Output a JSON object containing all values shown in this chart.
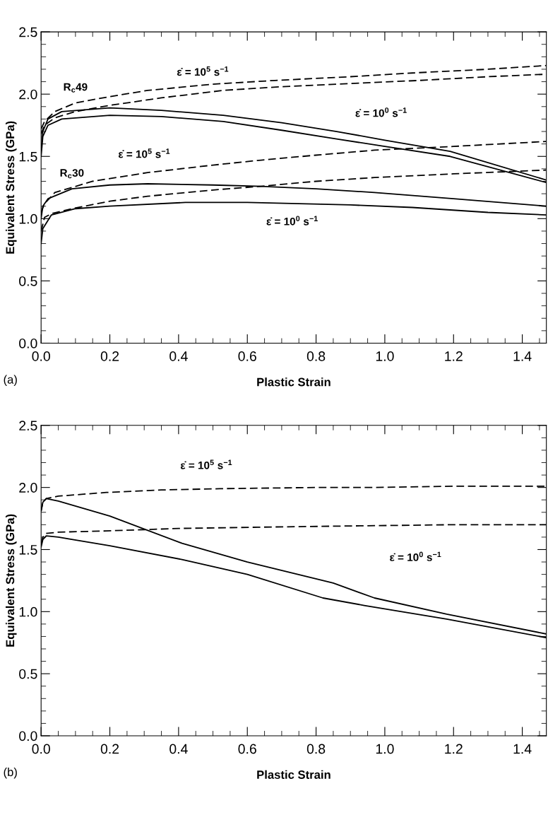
{
  "chart_data": [
    {
      "type": "line",
      "xlabel": "Plastic Strain",
      "ylabel": "Equivalent Stress (GPa)",
      "xlim": [
        0,
        1.47
      ],
      "xticks": [
        {
          "value": 0,
          "label": "0.0"
        },
        {
          "value": 0.2,
          "label": "0.2"
        },
        {
          "value": 0.4,
          "label": "0.4"
        },
        {
          "value": 0.6,
          "label": "0.6"
        },
        {
          "value": 0.8,
          "label": "0.8"
        },
        {
          "value": 1.0,
          "label": "1.0"
        },
        {
          "value": 1.2,
          "label": "1.2"
        },
        {
          "value": 1.4,
          "label": "1.4"
        }
      ],
      "ylim": [
        0,
        2.5
      ],
      "yticks": [
        {
          "value": 0,
          "label": "0.0"
        },
        {
          "value": 0.5,
          "label": "0.5"
        },
        {
          "value": 1.0,
          "label": "1.0"
        },
        {
          "value": 1.5,
          "label": "1.5"
        },
        {
          "value": 2.0,
          "label": "2.0"
        },
        {
          "value": 2.5,
          "label": "2.5"
        }
      ],
      "grid": false,
      "legend": false,
      "marker": "none",
      "series": [
        {
          "color": "#000000",
          "line_style": "dashed",
          "x": [
            0,
            0.01,
            0.04,
            0.1,
            0.2,
            0.31,
            0.5,
            0.68,
            0.9,
            1.08,
            1.3,
            1.47
          ],
          "values": [
            1.72,
            1.78,
            1.86,
            1.93,
            1.98,
            2.03,
            2.08,
            2.11,
            2.14,
            2.17,
            2.2,
            2.23
          ]
        },
        {
          "color": "#000000",
          "line_style": "dashed",
          "x": [
            0,
            0.01,
            0.04,
            0.1,
            0.2,
            0.35,
            0.53,
            0.7,
            0.86,
            1.1,
            1.3,
            1.47
          ],
          "values": [
            1.68,
            1.75,
            1.81,
            1.86,
            1.91,
            1.97,
            2.03,
            2.06,
            2.08,
            2.11,
            2.14,
            2.16
          ]
        },
        {
          "color": "#000000",
          "line_style": "solid",
          "x": [
            0,
            0.005,
            0.02,
            0.06,
            0.2,
            0.35,
            0.53,
            0.7,
            0.86,
            1.0,
            1.19,
            1.47
          ],
          "values": [
            1.55,
            1.7,
            1.8,
            1.86,
            1.89,
            1.87,
            1.83,
            1.77,
            1.7,
            1.63,
            1.54,
            1.31
          ]
        },
        {
          "color": "#000000",
          "line_style": "solid",
          "x": [
            0,
            0.005,
            0.02,
            0.06,
            0.2,
            0.35,
            0.53,
            0.7,
            0.86,
            1.0,
            1.19,
            1.47
          ],
          "values": [
            1.5,
            1.66,
            1.75,
            1.8,
            1.83,
            1.82,
            1.78,
            1.71,
            1.64,
            1.58,
            1.5,
            1.29
          ]
        },
        {
          "color": "#000000",
          "line_style": "dashed",
          "x": [
            0,
            0.01,
            0.04,
            0.15,
            0.31,
            0.5,
            0.64,
            0.8,
            0.97,
            1.2,
            1.47
          ],
          "values": [
            1.05,
            1.12,
            1.21,
            1.3,
            1.37,
            1.43,
            1.47,
            1.51,
            1.55,
            1.58,
            1.62
          ]
        },
        {
          "color": "#000000",
          "line_style": "dashed",
          "x": [
            0,
            0.01,
            0.03,
            0.09,
            0.2,
            0.31,
            0.5,
            0.64,
            0.8,
            0.97,
            1.2,
            1.47
          ],
          "values": [
            0.9,
            1.01,
            1.04,
            1.08,
            1.14,
            1.18,
            1.23,
            1.26,
            1.3,
            1.33,
            1.36,
            1.39
          ]
        },
        {
          "color": "#000000",
          "line_style": "solid",
          "x": [
            0,
            0.005,
            0.02,
            0.09,
            0.2,
            0.31,
            0.5,
            0.64,
            0.8,
            0.97,
            1.2,
            1.47
          ],
          "values": [
            1.0,
            1.1,
            1.16,
            1.24,
            1.27,
            1.28,
            1.27,
            1.26,
            1.24,
            1.21,
            1.16,
            1.1
          ]
        },
        {
          "color": "#000000",
          "line_style": "solid",
          "x": [
            0,
            0.005,
            0.03,
            0.1,
            0.2,
            0.42,
            0.6,
            0.75,
            0.9,
            1.08,
            1.3,
            1.47
          ],
          "values": [
            0.8,
            0.92,
            1.03,
            1.08,
            1.1,
            1.13,
            1.13,
            1.12,
            1.11,
            1.09,
            1.05,
            1.03
          ]
        }
      ],
      "annotations": [
        "ε̇ = 10$^{5}$ s$^{−1}$",
        "R$_{c}$49",
        "ε̇ = 10$^{0}$ s$^{−1}$",
        "ε̇ = 10$^{5}$ s$^{−1}$",
        "R$_{c}$30",
        "ε̇ = 10$^{0}$ s$^{−1}$",
        "(a)"
      ]
    },
    {
      "type": "line",
      "xlabel": "Plastic Strain",
      "ylabel": "Equivalent Stress (GPa)",
      "xlim": [
        0,
        1.47
      ],
      "xticks": [
        {
          "value": 0,
          "label": "0.0"
        },
        {
          "value": 0.2,
          "label": "0.2"
        },
        {
          "value": 0.4,
          "label": "0.4"
        },
        {
          "value": 0.6,
          "label": "0.6"
        },
        {
          "value": 0.8,
          "label": "0.8"
        },
        {
          "value": 1.0,
          "label": "1.0"
        },
        {
          "value": 1.2,
          "label": "1.2"
        },
        {
          "value": 1.4,
          "label": "1.4"
        }
      ],
      "ylim": [
        0,
        2.5
      ],
      "yticks": [
        {
          "value": 0,
          "label": "0.0"
        },
        {
          "value": 0.5,
          "label": "0.5"
        },
        {
          "value": 1.0,
          "label": "1.0"
        },
        {
          "value": 1.5,
          "label": "1.5"
        },
        {
          "value": 2.0,
          "label": "2.0"
        },
        {
          "value": 2.5,
          "label": "2.5"
        }
      ],
      "grid": false,
      "legend": false,
      "marker": "none",
      "series": [
        {
          "color": "#000000",
          "line_style": "dashed",
          "x": [
            0,
            0.005,
            0.015,
            0.05,
            0.19,
            0.35,
            0.52,
            0.8,
            0.97,
            1.2,
            1.47
          ],
          "values": [
            1.81,
            1.88,
            1.91,
            1.93,
            1.96,
            1.98,
            1.99,
            2.0,
            2.0,
            2.01,
            2.01
          ]
        },
        {
          "color": "#000000",
          "line_style": "dashed",
          "x": [
            0,
            0.005,
            0.015,
            0.05,
            0.19,
            0.4,
            0.63,
            0.9,
            1.2,
            1.47
          ],
          "values": [
            1.55,
            1.6,
            1.63,
            1.64,
            1.65,
            1.67,
            1.68,
            1.69,
            1.7,
            1.7
          ]
        },
        {
          "color": "#000000",
          "line_style": "solid",
          "x": [
            0,
            0.005,
            0.015,
            0.05,
            0.2,
            0.41,
            0.6,
            0.85,
            0.97,
            1.18,
            1.47
          ],
          "values": [
            1.81,
            1.88,
            1.91,
            1.89,
            1.77,
            1.55,
            1.4,
            1.23,
            1.11,
            0.98,
            0.82
          ]
        },
        {
          "color": "#000000",
          "line_style": "solid",
          "x": [
            0,
            0.005,
            0.015,
            0.05,
            0.2,
            0.41,
            0.6,
            0.82,
            0.94,
            1.18,
            1.47
          ],
          "values": [
            1.52,
            1.58,
            1.61,
            1.6,
            1.53,
            1.42,
            1.3,
            1.11,
            1.05,
            0.94,
            0.79
          ]
        }
      ],
      "annotations": [
        "ε̇ = 10$^{5}$ s$^{−1}$",
        "ε̇ = 10$^{0}$ s$^{−1}$",
        "(b)"
      ]
    }
  ]
}
